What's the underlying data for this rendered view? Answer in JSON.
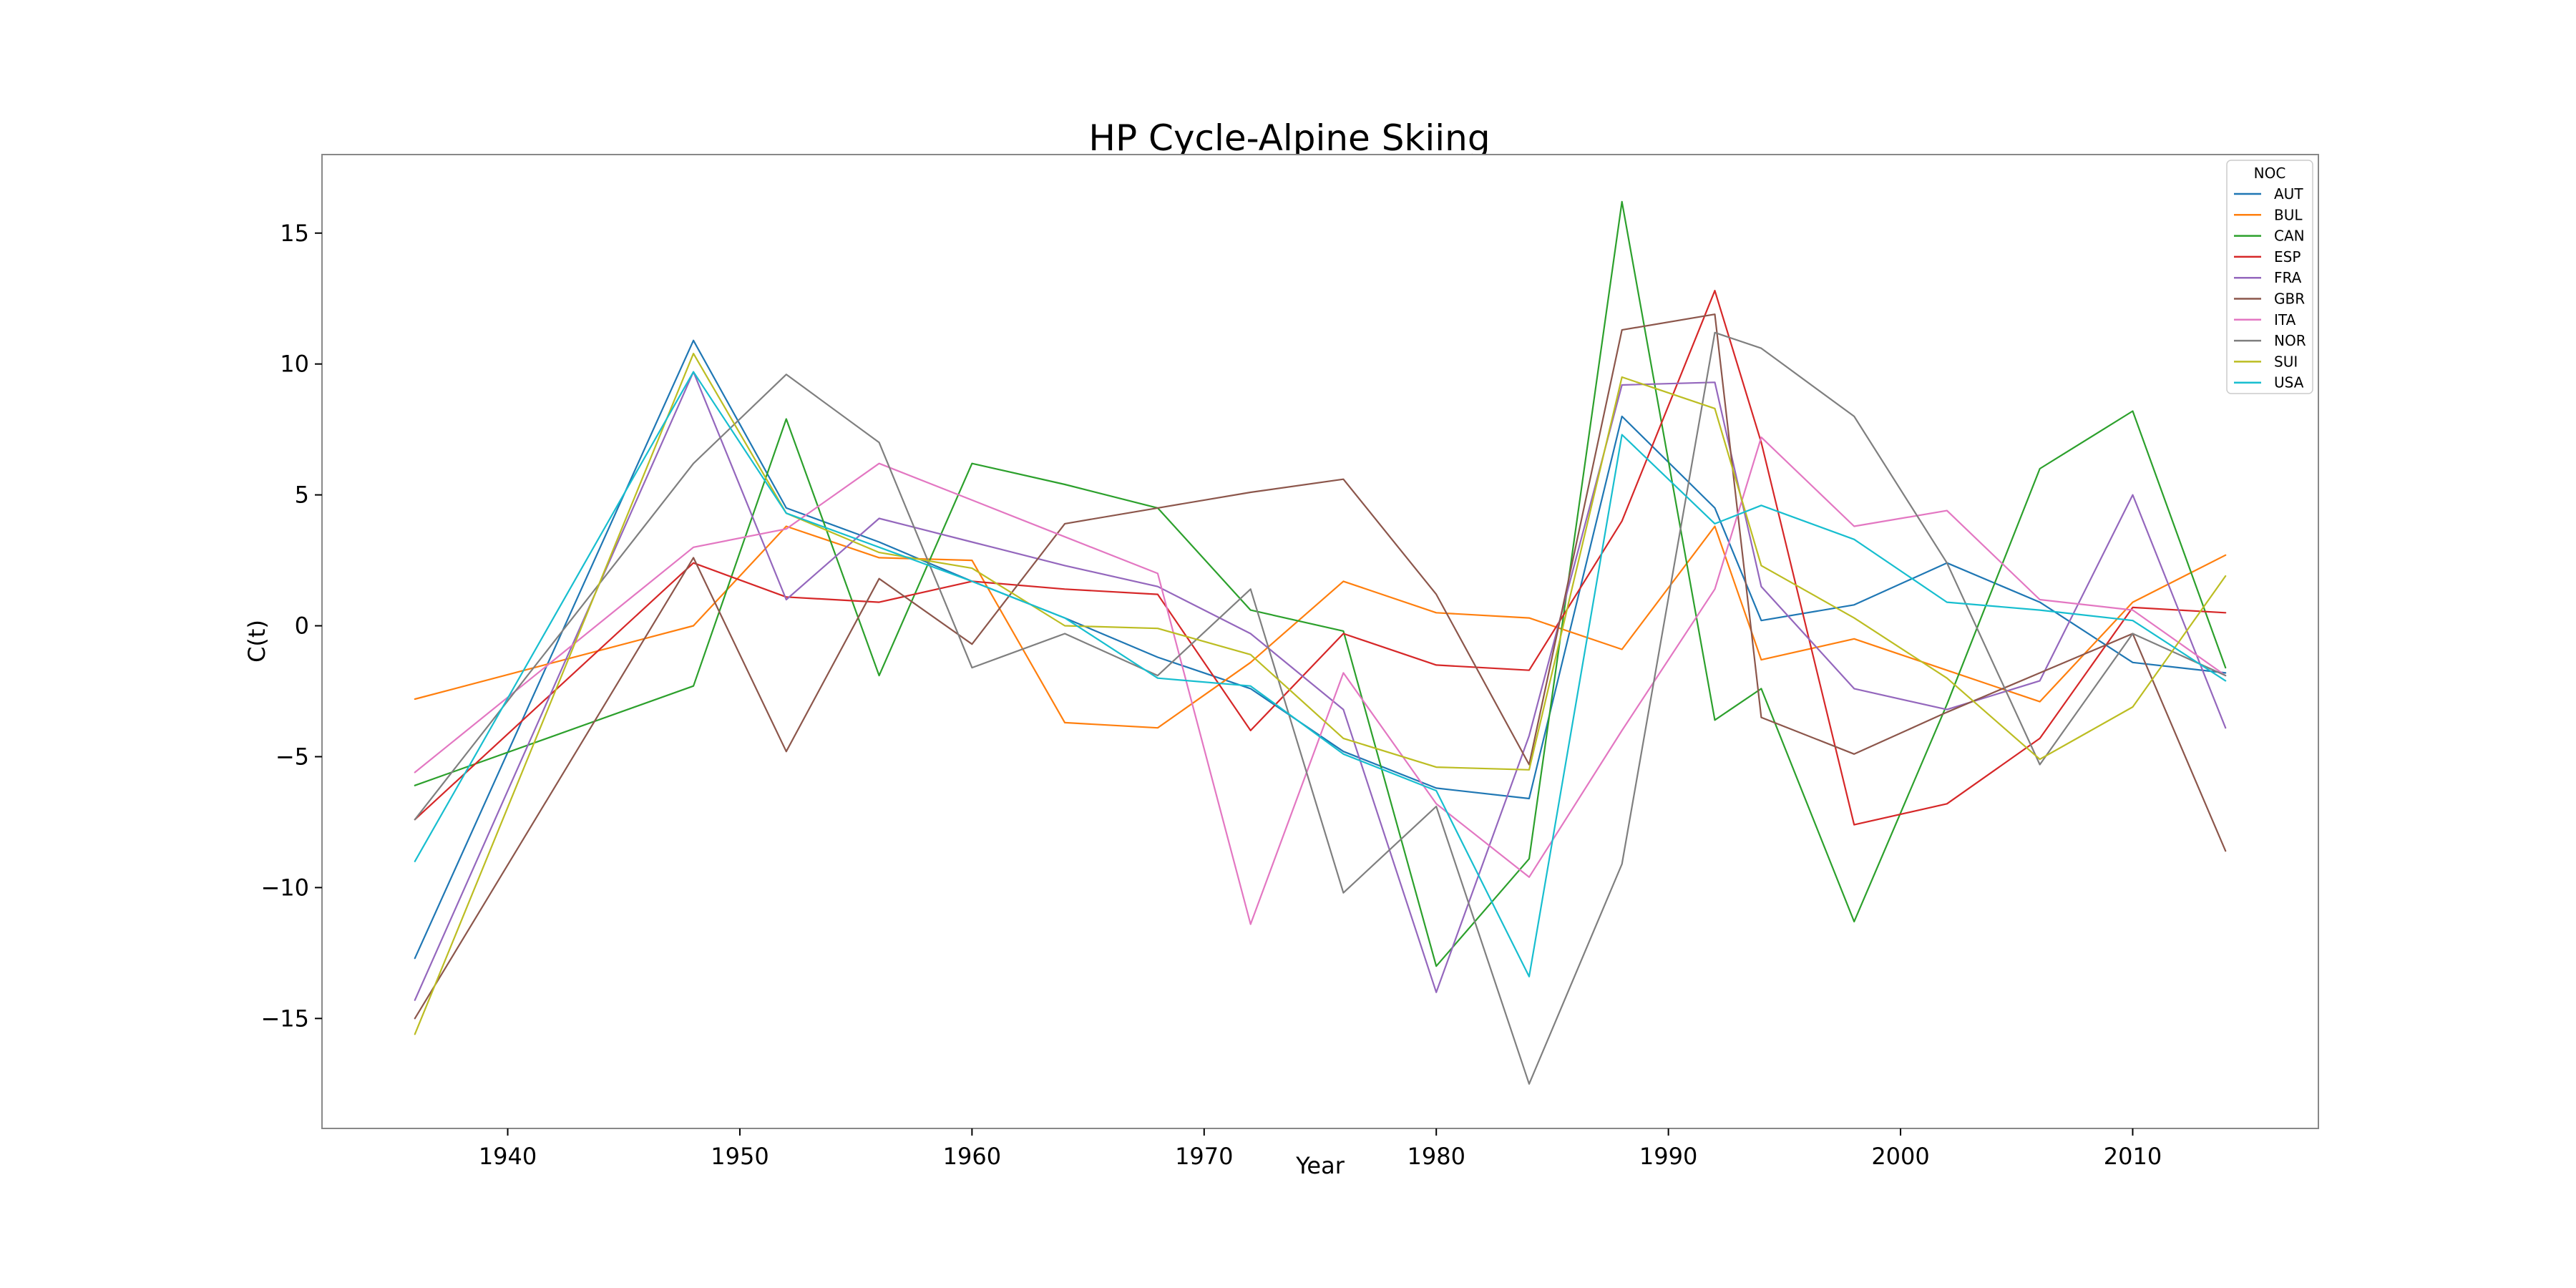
{
  "chart_data": {
    "type": "line",
    "title": "HP Cycle-Alpine Skiing",
    "xlabel": "Year",
    "ylabel": "C(t)",
    "xlim": [
      1932,
      2018
    ],
    "ylim": [
      -19.2,
      18
    ],
    "xticks": [
      1940,
      1950,
      1960,
      1970,
      1980,
      1990,
      2000,
      2010
    ],
    "yticks": [
      -15,
      -10,
      -5,
      0,
      5,
      10,
      15
    ],
    "ytick_labels": [
      "−15",
      "−10",
      "−5",
      "0",
      "5",
      "10",
      "15"
    ],
    "grid": false,
    "legend": {
      "title": "NOC",
      "position": "top-right"
    },
    "x": [
      1936,
      1948,
      1952,
      1956,
      1960,
      1964,
      1968,
      1972,
      1976,
      1980,
      1984,
      1988,
      1992,
      1994,
      1998,
      2002,
      2006,
      2010,
      2014
    ],
    "series": [
      {
        "name": "AUT",
        "color": "#1f77b4",
        "values": [
          -12.7,
          10.9,
          4.5,
          3.2,
          1.7,
          0.3,
          -1.2,
          -2.4,
          -4.8,
          -6.2,
          -6.6,
          8.0,
          4.5,
          0.2,
          0.8,
          2.4,
          0.9,
          -1.4,
          -1.8
        ]
      },
      {
        "name": "BUL",
        "color": "#ff7f0e",
        "values": [
          -2.8,
          0.0,
          3.8,
          2.6,
          2.5,
          -3.7,
          -3.9,
          -1.4,
          1.7,
          0.5,
          0.3,
          -0.9,
          3.8,
          -1.3,
          -0.5,
          -1.7,
          -2.9,
          0.9,
          2.7
        ]
      },
      {
        "name": "CAN",
        "color": "#2ca02c",
        "values": [
          -6.1,
          -2.3,
          7.9,
          -1.9,
          6.2,
          5.4,
          4.5,
          0.6,
          -0.2,
          -13.0,
          -8.9,
          16.2,
          -3.6,
          -2.4,
          -11.3,
          -3.0,
          6.0,
          8.2,
          -1.6
        ]
      },
      {
        "name": "ESP",
        "color": "#d62728",
        "values": [
          -7.4,
          2.4,
          1.1,
          0.9,
          1.7,
          1.4,
          1.2,
          -4.0,
          -0.3,
          -1.5,
          -1.7,
          4.0,
          12.8,
          7.0,
          -7.6,
          -6.8,
          -4.3,
          0.7,
          0.5
        ]
      },
      {
        "name": "FRA",
        "color": "#9467bd",
        "values": [
          -14.3,
          9.7,
          1.0,
          4.1,
          3.2,
          2.3,
          1.5,
          -0.3,
          -3.2,
          -14.0,
          -4.2,
          9.2,
          9.3,
          1.5,
          -2.4,
          -3.2,
          -2.1,
          5.0,
          -3.9
        ]
      },
      {
        "name": "GBR",
        "color": "#8c564b",
        "values": [
          -15.0,
          2.6,
          -4.8,
          1.8,
          -0.7,
          3.9,
          4.5,
          5.1,
          5.6,
          1.2,
          -5.3,
          11.3,
          11.9,
          -3.5,
          -4.9,
          -3.3,
          -1.8,
          -0.3,
          -8.6
        ]
      },
      {
        "name": "ITA",
        "color": "#e377c2",
        "values": [
          -5.6,
          3.0,
          3.7,
          6.2,
          4.8,
          3.4,
          2.0,
          -11.4,
          -1.8,
          -6.8,
          -9.6,
          -4.0,
          1.4,
          7.2,
          3.8,
          4.4,
          1.0,
          0.6,
          -1.9
        ]
      },
      {
        "name": "NOR",
        "color": "#7f7f7f",
        "values": [
          -7.4,
          6.2,
          9.6,
          7.0,
          -1.6,
          -0.3,
          -1.9,
          1.4,
          -10.2,
          -6.9,
          -17.5,
          -9.1,
          11.2,
          10.6,
          8.0,
          2.4,
          -5.3,
          -0.3,
          -1.9
        ]
      },
      {
        "name": "SUI",
        "color": "#bcbd22",
        "values": [
          -15.6,
          10.4,
          4.3,
          2.8,
          2.2,
          0.0,
          -0.1,
          -1.1,
          -4.3,
          -5.4,
          -5.5,
          9.5,
          8.3,
          2.3,
          0.3,
          -2.0,
          -5.1,
          -3.1,
          1.9
        ]
      },
      {
        "name": "USA",
        "color": "#17becf",
        "values": [
          -9.0,
          9.7,
          4.3,
          3.0,
          1.7,
          0.3,
          -2.0,
          -2.3,
          -4.9,
          -6.3,
          -13.4,
          7.3,
          3.9,
          4.6,
          3.3,
          0.9,
          0.6,
          0.2,
          -2.1
        ]
      }
    ]
  }
}
